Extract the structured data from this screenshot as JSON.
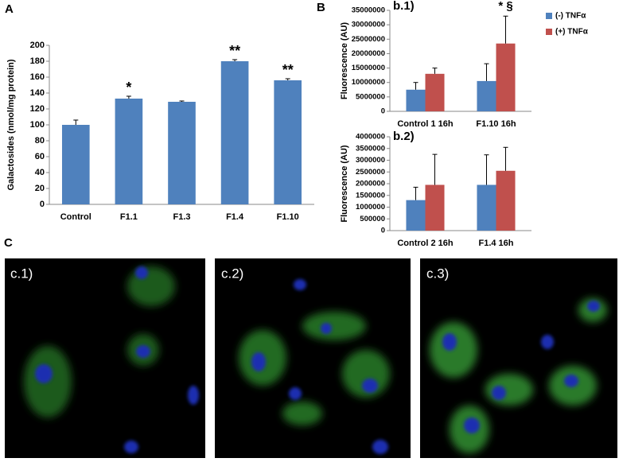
{
  "panel_labels": [
    "A",
    "B",
    "C"
  ],
  "image_labels": [
    "c.1)",
    "c.2)",
    "c.3)"
  ],
  "chart_data": [
    {
      "type": "bar",
      "y_label": "Galactosides (nmol/mg protein)",
      "categories": [
        "Control",
        "F1.1",
        "F1.3",
        "F1.4",
        "F1.10"
      ],
      "values": [
        100,
        133,
        129,
        180,
        156
      ],
      "errors": [
        6,
        3,
        1,
        2,
        2
      ],
      "significance": [
        null,
        "*",
        null,
        "**",
        "**"
      ],
      "color": "#4f81bd",
      "ylim": [
        0,
        200
      ],
      "yticks": [
        0,
        20,
        40,
        60,
        80,
        100,
        120,
        140,
        160,
        180,
        200
      ]
    },
    {
      "type": "grouped_bar",
      "label": "b.1)",
      "y_label": "Fluorescence (AU)",
      "categories": [
        "Control 1 16h",
        "F1.10 16h"
      ],
      "series": [
        {
          "name": "(-) TNFα",
          "color": "#4f81bd",
          "values": [
            7500000,
            10500000
          ],
          "errors": [
            2500000,
            6000000
          ]
        },
        {
          "name": "(+) TNFα",
          "color": "#c0504d",
          "values": [
            13000000,
            23500000
          ],
          "errors": [
            2000000,
            9500000
          ],
          "significance": [
            null,
            "* §"
          ]
        }
      ],
      "ylim": [
        0,
        35000000
      ],
      "yticks": [
        0,
        5000000,
        10000000,
        15000000,
        20000000,
        25000000,
        30000000,
        35000000
      ],
      "legend": "right"
    },
    {
      "type": "grouped_bar",
      "label": "b.2)",
      "y_label": "Fluorescence (AU)",
      "categories": [
        "Control 2 16h",
        "F1.4 16h"
      ],
      "series": [
        {
          "color": "#4f81bd",
          "values": [
            1300000,
            1950000
          ],
          "errors": [
            550000,
            1280000
          ]
        },
        {
          "color": "#c0504d",
          "values": [
            1950000,
            2550000
          ],
          "errors": [
            1300000,
            1000000
          ]
        }
      ],
      "ylim": [
        0,
        4000000
      ],
      "yticks": [
        0,
        500000,
        1000000,
        1500000,
        2000000,
        2500000,
        3000000,
        3500000,
        4000000
      ]
    }
  ]
}
